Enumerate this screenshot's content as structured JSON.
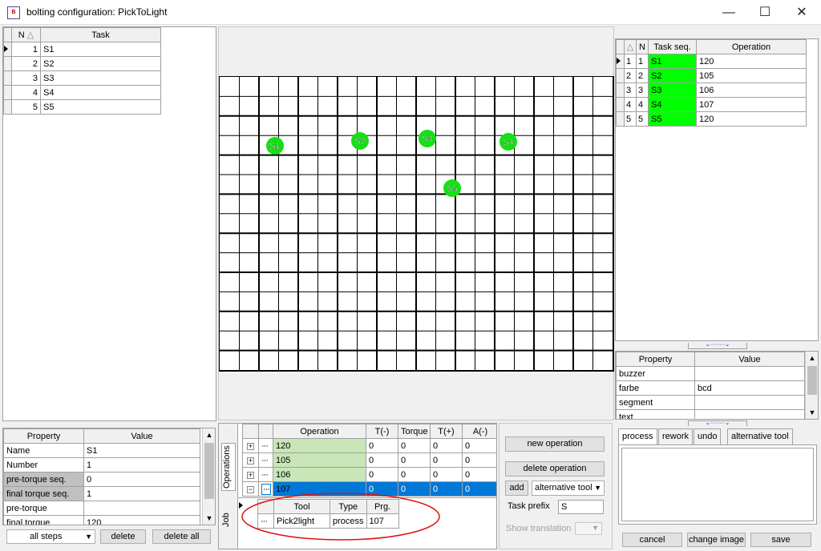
{
  "window": {
    "title": "bolting configuration:  PickToLight",
    "minimize": "—",
    "maximize": "☐",
    "close": "✕"
  },
  "left_table": {
    "columns": [
      "N",
      "Task"
    ],
    "sort_icon": "△",
    "rows": [
      {
        "n": "1",
        "task": "S1"
      },
      {
        "n": "2",
        "task": "S2"
      },
      {
        "n": "3",
        "task": "S3"
      },
      {
        "n": "4",
        "task": "S4"
      },
      {
        "n": "5",
        "task": "S5"
      }
    ]
  },
  "left_props": {
    "columns": [
      "Property",
      "Value"
    ],
    "rows": [
      {
        "p": "Name",
        "v": "S1",
        "shaded": false
      },
      {
        "p": "Number",
        "v": "1",
        "shaded": false
      },
      {
        "p": "pre-torque seq.",
        "v": "0",
        "shaded": true
      },
      {
        "p": "final torque seq.",
        "v": "1",
        "shaded": true
      },
      {
        "p": "pre-torque",
        "v": "",
        "shaded": false
      },
      {
        "p": "final torque",
        "v": "120",
        "shaded": false
      }
    ]
  },
  "left_buttons": {
    "steps_select": "all steps",
    "delete": "delete",
    "delete_all": "delete all"
  },
  "markers": [
    {
      "label": "S1"
    },
    {
      "label": "S2"
    },
    {
      "label": "S3"
    },
    {
      "label": "S4"
    },
    {
      "label": "S5"
    }
  ],
  "ops_table": {
    "columns": [
      "Operation",
      "T(-)",
      "Torque",
      "T(+)",
      "A(-)"
    ],
    "rows": [
      {
        "op": "120",
        "vals": [
          "0",
          "0",
          "0",
          "0"
        ],
        "expanded": false,
        "selected": false
      },
      {
        "op": "105",
        "vals": [
          "0",
          "0",
          "0",
          "0"
        ],
        "expanded": false,
        "selected": false
      },
      {
        "op": "106",
        "vals": [
          "0",
          "0",
          "0",
          "0"
        ],
        "expanded": false,
        "selected": false
      },
      {
        "op": "107",
        "vals": [
          "0",
          "0",
          "0",
          "0"
        ],
        "expanded": true,
        "selected": true
      }
    ],
    "sub_columns": [
      "Tool",
      "Type",
      "Prg."
    ],
    "sub_row": {
      "tool": "Pick2light",
      "type": "process",
      "prg": "107"
    },
    "vtabs": [
      "Operations",
      "Job"
    ]
  },
  "op_buttons": {
    "new_operation": "new operation",
    "delete_operation": "delete operation",
    "add": "add",
    "alt_tool": "alternative tool",
    "task_prefix_label": "Task prefix",
    "task_prefix_value": "S",
    "show_translation": "Show translation"
  },
  "right_table": {
    "columns": [
      "N",
      "Task seq.",
      "Operation"
    ],
    "sort_icon": "△",
    "rows": [
      {
        "idx": "1",
        "n": "1",
        "seq": "S1",
        "op": "120"
      },
      {
        "idx": "2",
        "n": "2",
        "seq": "S2",
        "op": "105"
      },
      {
        "idx": "3",
        "n": "3",
        "seq": "S3",
        "op": "106"
      },
      {
        "idx": "4",
        "n": "4",
        "seq": "S4",
        "op": "107"
      },
      {
        "idx": "5",
        "n": "5",
        "seq": "S5",
        "op": "120"
      }
    ]
  },
  "right_props": {
    "columns": [
      "Property",
      "Value"
    ],
    "rows": [
      {
        "p": "buzzer",
        "v": ""
      },
      {
        "p": "farbe",
        "v": "bcd"
      },
      {
        "p": "segment",
        "v": ""
      },
      {
        "p": "text",
        "v": ""
      }
    ]
  },
  "right_tabs": [
    "process",
    "rework",
    "undo",
    "alternative tool"
  ],
  "right_buttons": {
    "cancel": "cancel",
    "change_image": "change image",
    "save": "save"
  }
}
